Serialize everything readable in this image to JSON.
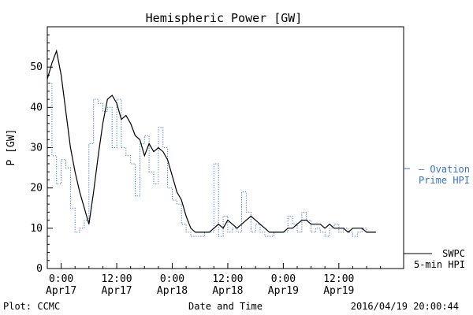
{
  "chart_data": {
    "type": "line",
    "title": "Hemispheric Power [GW]",
    "xlabel": "Date and Time",
    "ylabel": "P [GW]",
    "xlim": [
      "2016-04-16 21:00",
      "2016-04-20 02:00"
    ],
    "ylim": [
      0,
      60
    ],
    "y_ticks": [
      0,
      10,
      20,
      30,
      40,
      50
    ],
    "x_ticks": [
      {
        "x": "2016-04-17 00:00",
        "time": "0:00",
        "date": "Apr17"
      },
      {
        "x": "2016-04-17 12:00",
        "time": "12:00",
        "date": "Apr17"
      },
      {
        "x": "2016-04-18 00:00",
        "time": "0:00",
        "date": "Apr18"
      },
      {
        "x": "2016-04-18 12:00",
        "time": "12:00",
        "date": "Apr18"
      },
      {
        "x": "2016-04-19 00:00",
        "time": "0:00",
        "date": "Apr19"
      },
      {
        "x": "2016-04-19 12:00",
        "time": "12:00",
        "date": "Apr19"
      }
    ],
    "series": [
      {
        "name": "SWPC 5-min HPI",
        "legend_lines": [
          "SWPC",
          "5-min HPI"
        ],
        "color": "#000000",
        "style": "solid",
        "points": [
          [
            "2016-04-16 21:00",
            47
          ],
          [
            "2016-04-16 22:00",
            51
          ],
          [
            "2016-04-16 23:00",
            54
          ],
          [
            "2016-04-17 00:00",
            48
          ],
          [
            "2016-04-17 01:00",
            39
          ],
          [
            "2016-04-17 02:00",
            30
          ],
          [
            "2016-04-17 03:00",
            24
          ],
          [
            "2016-04-17 04:00",
            19
          ],
          [
            "2016-04-17 05:00",
            15
          ],
          [
            "2016-04-17 06:00",
            11
          ],
          [
            "2016-04-17 07:00",
            19
          ],
          [
            "2016-04-17 08:00",
            28
          ],
          [
            "2016-04-17 09:00",
            36
          ],
          [
            "2016-04-17 10:00",
            42
          ],
          [
            "2016-04-17 11:00",
            43
          ],
          [
            "2016-04-17 12:00",
            41
          ],
          [
            "2016-04-17 13:00",
            37
          ],
          [
            "2016-04-17 14:00",
            38
          ],
          [
            "2016-04-17 15:00",
            36
          ],
          [
            "2016-04-17 16:00",
            33
          ],
          [
            "2016-04-17 17:00",
            32
          ],
          [
            "2016-04-17 18:00",
            28
          ],
          [
            "2016-04-17 19:00",
            31
          ],
          [
            "2016-04-17 20:00",
            29
          ],
          [
            "2016-04-17 21:00",
            30
          ],
          [
            "2016-04-17 22:00",
            29
          ],
          [
            "2016-04-17 23:00",
            27
          ],
          [
            "2016-04-18 00:00",
            23
          ],
          [
            "2016-04-18 01:00",
            19
          ],
          [
            "2016-04-18 02:00",
            17
          ],
          [
            "2016-04-18 03:00",
            13
          ],
          [
            "2016-04-18 04:00",
            10
          ],
          [
            "2016-04-18 05:00",
            9
          ],
          [
            "2016-04-18 06:00",
            9
          ],
          [
            "2016-04-18 07:00",
            9
          ],
          [
            "2016-04-18 08:00",
            9
          ],
          [
            "2016-04-18 09:00",
            10
          ],
          [
            "2016-04-18 10:00",
            11
          ],
          [
            "2016-04-18 11:00",
            10
          ],
          [
            "2016-04-18 12:00",
            12
          ],
          [
            "2016-04-18 13:00",
            11
          ],
          [
            "2016-04-18 14:00",
            10
          ],
          [
            "2016-04-18 15:00",
            11
          ],
          [
            "2016-04-18 16:00",
            12
          ],
          [
            "2016-04-18 17:00",
            13
          ],
          [
            "2016-04-18 18:00",
            12
          ],
          [
            "2016-04-18 19:00",
            11
          ],
          [
            "2016-04-18 20:00",
            10
          ],
          [
            "2016-04-18 21:00",
            9
          ],
          [
            "2016-04-18 22:00",
            9
          ],
          [
            "2016-04-18 23:00",
            9
          ],
          [
            "2016-04-19 00:00",
            9
          ],
          [
            "2016-04-19 01:00",
            10
          ],
          [
            "2016-04-19 02:00",
            10
          ],
          [
            "2016-04-19 03:00",
            11
          ],
          [
            "2016-04-19 04:00",
            12
          ],
          [
            "2016-04-19 05:00",
            12
          ],
          [
            "2016-04-19 06:00",
            11
          ],
          [
            "2016-04-19 07:00",
            11
          ],
          [
            "2016-04-19 08:00",
            11
          ],
          [
            "2016-04-19 09:00",
            10
          ],
          [
            "2016-04-19 10:00",
            11
          ],
          [
            "2016-04-19 11:00",
            10
          ],
          [
            "2016-04-19 12:00",
            10
          ],
          [
            "2016-04-19 13:00",
            10
          ],
          [
            "2016-04-19 14:00",
            9
          ],
          [
            "2016-04-19 15:00",
            10
          ],
          [
            "2016-04-19 16:00",
            10
          ],
          [
            "2016-04-19 17:00",
            10
          ],
          [
            "2016-04-19 18:00",
            9
          ],
          [
            "2016-04-19 19:00",
            9
          ],
          [
            "2016-04-19 20:00",
            9
          ]
        ]
      },
      {
        "name": "Ovation Prime HPI",
        "legend_lines": [
          "– Ovation",
          "Prime HPI"
        ],
        "color": "#3a73c8",
        "style": "dotted-step",
        "points": [
          [
            "2016-04-16 21:00",
            46
          ],
          [
            "2016-04-16 22:00",
            28
          ],
          [
            "2016-04-16 23:00",
            21
          ],
          [
            "2016-04-17 00:00",
            27
          ],
          [
            "2016-04-17 01:00",
            25
          ],
          [
            "2016-04-17 02:00",
            15
          ],
          [
            "2016-04-17 03:00",
            9
          ],
          [
            "2016-04-17 04:00",
            10
          ],
          [
            "2016-04-17 05:00",
            12
          ],
          [
            "2016-04-17 06:00",
            31
          ],
          [
            "2016-04-17 07:00",
            42
          ],
          [
            "2016-04-17 08:00",
            41
          ],
          [
            "2016-04-17 09:00",
            39
          ],
          [
            "2016-04-17 10:00",
            40
          ],
          [
            "2016-04-17 11:00",
            30
          ],
          [
            "2016-04-17 12:00",
            42
          ],
          [
            "2016-04-17 13:00",
            30
          ],
          [
            "2016-04-17 14:00",
            28
          ],
          [
            "2016-04-17 15:00",
            26
          ],
          [
            "2016-04-17 16:00",
            18
          ],
          [
            "2016-04-17 17:00",
            31
          ],
          [
            "2016-04-17 18:00",
            33
          ],
          [
            "2016-04-17 19:00",
            24
          ],
          [
            "2016-04-17 20:00",
            21
          ],
          [
            "2016-04-17 21:00",
            35
          ],
          [
            "2016-04-17 22:00",
            30
          ],
          [
            "2016-04-17 23:00",
            20
          ],
          [
            "2016-04-18 00:00",
            17
          ],
          [
            "2016-04-18 01:00",
            16
          ],
          [
            "2016-04-18 02:00",
            11
          ],
          [
            "2016-04-18 03:00",
            9
          ],
          [
            "2016-04-18 04:00",
            8
          ],
          [
            "2016-04-18 05:00",
            8
          ],
          [
            "2016-04-18 06:00",
            8
          ],
          [
            "2016-04-18 07:00",
            9
          ],
          [
            "2016-04-18 08:00",
            9
          ],
          [
            "2016-04-18 09:00",
            26
          ],
          [
            "2016-04-18 10:00",
            8
          ],
          [
            "2016-04-18 11:00",
            13
          ],
          [
            "2016-04-18 12:00",
            9
          ],
          [
            "2016-04-18 13:00",
            10
          ],
          [
            "2016-04-18 14:00",
            9
          ],
          [
            "2016-04-18 15:00",
            19
          ],
          [
            "2016-04-18 16:00",
            14
          ],
          [
            "2016-04-18 17:00",
            9
          ],
          [
            "2016-04-18 18:00",
            11
          ],
          [
            "2016-04-18 19:00",
            9
          ],
          [
            "2016-04-18 20:00",
            8
          ],
          [
            "2016-04-18 21:00",
            8
          ],
          [
            "2016-04-18 22:00",
            9
          ],
          [
            "2016-04-18 23:00",
            9
          ],
          [
            "2016-04-19 00:00",
            9
          ],
          [
            "2016-04-19 01:00",
            13
          ],
          [
            "2016-04-19 02:00",
            11
          ],
          [
            "2016-04-19 03:00",
            9
          ],
          [
            "2016-04-19 04:00",
            14
          ],
          [
            "2016-04-19 05:00",
            12
          ],
          [
            "2016-04-19 06:00",
            9
          ],
          [
            "2016-04-19 07:00",
            10
          ],
          [
            "2016-04-19 08:00",
            9
          ],
          [
            "2016-04-19 09:00",
            8
          ],
          [
            "2016-04-19 10:00",
            10
          ],
          [
            "2016-04-19 11:00",
            11
          ],
          [
            "2016-04-19 12:00",
            9
          ],
          [
            "2016-04-19 13:00",
            10
          ],
          [
            "2016-04-19 14:00",
            9
          ],
          [
            "2016-04-19 15:00",
            8
          ],
          [
            "2016-04-19 16:00",
            9
          ],
          [
            "2016-04-19 17:00",
            10
          ],
          [
            "2016-04-19 18:00",
            9
          ],
          [
            "2016-04-19 19:00",
            9
          ],
          [
            "2016-04-19 20:00",
            9
          ]
        ]
      }
    ]
  },
  "footer": {
    "credit": "Plot: CCMC",
    "timestamp": "2016/04/19 20:00:44"
  }
}
